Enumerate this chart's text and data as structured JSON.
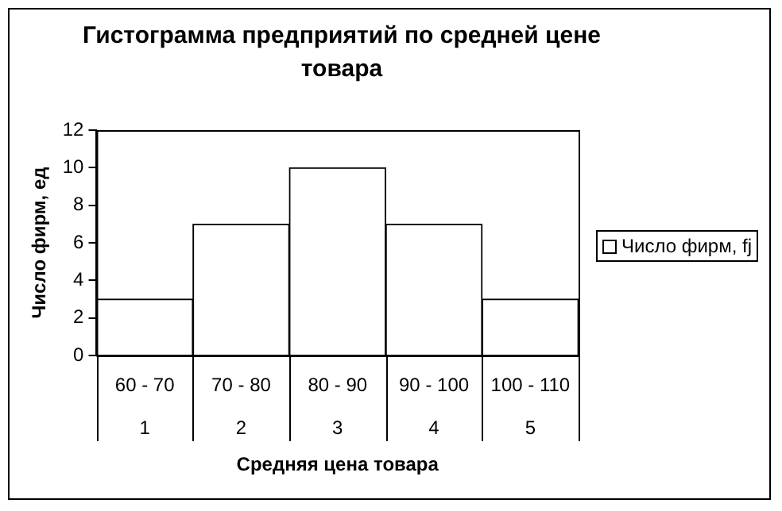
{
  "chart_data": {
    "type": "bar",
    "title": "Гистограмма предприятий по средней цене товара",
    "xlabel": "Средняя цена товара",
    "ylabel": "Число фирм, ед",
    "categories": [
      "60 - 70",
      "70 - 80",
      "80 - 90",
      "90 - 100",
      "100 - 110"
    ],
    "series": [
      {
        "name": "Число фирм, fj",
        "color": "#ffffff",
        "values": [
          3,
          7,
          10,
          7,
          3
        ]
      }
    ],
    "ylim": [
      0,
      12
    ],
    "yticks": [
      0,
      2,
      4,
      6,
      8,
      10,
      12
    ],
    "grid": false,
    "legend": "right",
    "annotations": [
      "1",
      "2",
      "3",
      "4",
      "5"
    ]
  }
}
